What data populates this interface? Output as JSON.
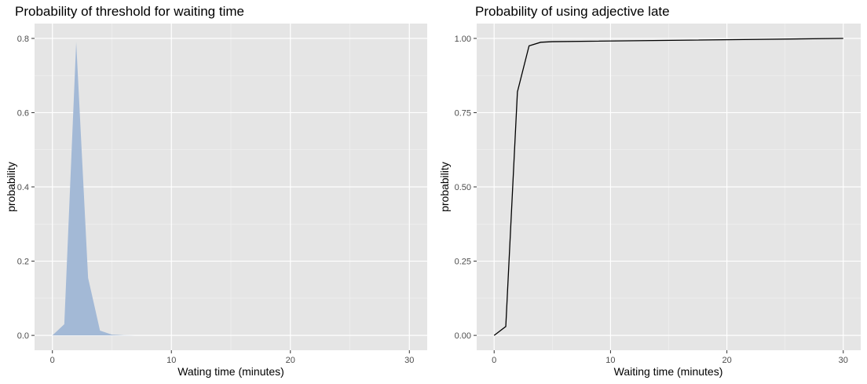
{
  "chart_data": [
    {
      "type": "area",
      "title": "Probability of threshold for waiting time",
      "xlabel": "Wating time (minutes)",
      "ylabel": "probability",
      "xlim": [
        -1.5,
        31.5
      ],
      "ylim": [
        -0.04,
        0.84
      ],
      "xticks": [
        0,
        10,
        20,
        30
      ],
      "yticks": [
        0.0,
        0.2,
        0.4,
        0.6,
        0.8
      ],
      "ytick_labels": [
        "0.0",
        "0.2",
        "0.4",
        "0.6",
        "0.8"
      ],
      "grid": true,
      "fill_color": "#a3b9d6",
      "series": [
        {
          "x": [
            0,
            1,
            2,
            3,
            4,
            5,
            6,
            7,
            8,
            9,
            10,
            11,
            12,
            13,
            14,
            15,
            16,
            17,
            18,
            19,
            20,
            21,
            22,
            23,
            24,
            25,
            26,
            27,
            28,
            29,
            30
          ],
          "values": [
            0.0,
            0.03,
            0.79,
            0.155,
            0.013,
            0.002,
            0.0005,
            0,
            0,
            0,
            0,
            0,
            0,
            0,
            0,
            0,
            0,
            0,
            0,
            0,
            0,
            0,
            0,
            0,
            0,
            0,
            0,
            0,
            0,
            0,
            0
          ]
        }
      ]
    },
    {
      "type": "line",
      "title": "Probability of using adjective late",
      "xlabel": "Waiting time (minutes)",
      "ylabel": "probability",
      "xlim": [
        -1.5,
        31.5
      ],
      "ylim": [
        -0.05,
        1.05
      ],
      "xticks": [
        0,
        10,
        20,
        30
      ],
      "yticks": [
        0.0,
        0.25,
        0.5,
        0.75,
        1.0
      ],
      "ytick_labels": [
        "0.00",
        "0.25",
        "0.50",
        "0.75",
        "1.00"
      ],
      "grid": true,
      "line_color": "#000000",
      "series": [
        {
          "x": [
            0,
            1,
            2,
            3,
            4,
            5,
            30
          ],
          "values": [
            0.0,
            0.03,
            0.82,
            0.975,
            0.987,
            0.989,
            1.0
          ]
        }
      ]
    }
  ]
}
